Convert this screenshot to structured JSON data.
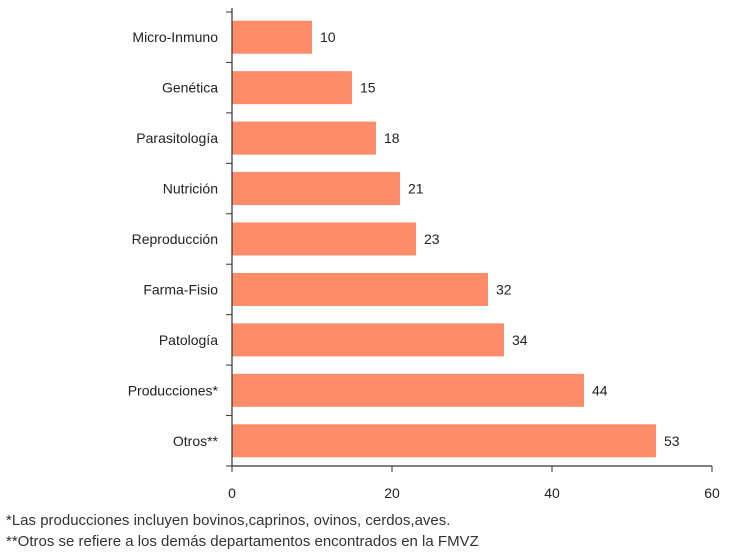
{
  "chart_data": {
    "type": "bar",
    "orientation": "horizontal",
    "title": "",
    "xlabel": "",
    "ylabel": "",
    "categories": [
      "Micro-Inmuno",
      "Genética",
      "Parasitología",
      "Nutrición",
      "Reproducción",
      "Farma-Fisio",
      "Patología",
      "Producciones*",
      "Otros**"
    ],
    "values": [
      10,
      15,
      18,
      21,
      23,
      32,
      34,
      44,
      53
    ],
    "xlim": [
      0,
      60
    ],
    "xticks": [
      0,
      20,
      40,
      60
    ],
    "grid": false,
    "legend": "none",
    "bar_color": "#FF8C69",
    "axis_color": "#333333"
  },
  "footnotes": [
    "*Las producciones incluyen bovinos,caprinos, ovinos, cerdos,aves.",
    "**Otros se refiere a los demás departamentos encontrados en la FMVZ"
  ]
}
